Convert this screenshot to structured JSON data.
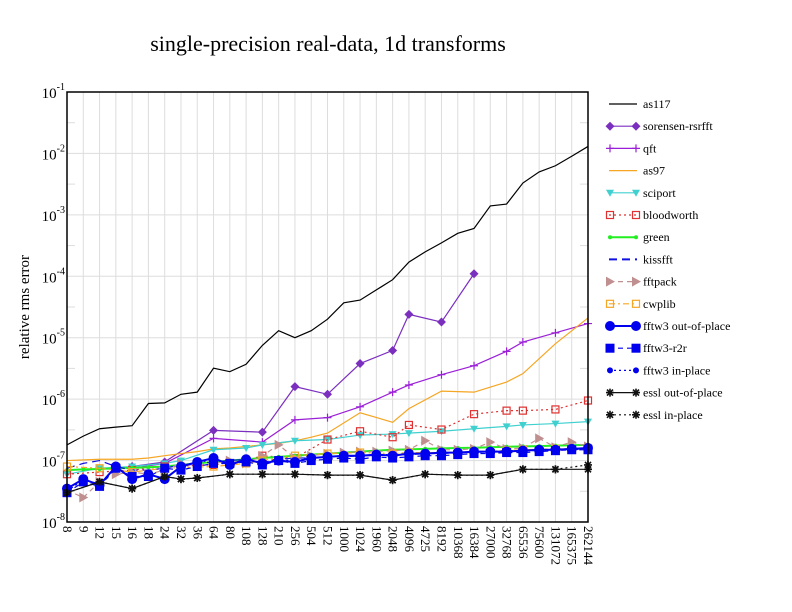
{
  "chart_data": {
    "type": "line",
    "title": "single-precision real-data, 1d transforms",
    "xlabel": "",
    "ylabel": "relative rms error",
    "yscale": "log",
    "ylim": [
      1e-08,
      0.1
    ],
    "yticks": [
      {
        "base": "10",
        "exp": "-8",
        "value": 1e-08
      },
      {
        "base": "10",
        "exp": "-7",
        "value": 1e-07
      },
      {
        "base": "10",
        "exp": "-6",
        "value": 1e-06
      },
      {
        "base": "10",
        "exp": "-5",
        "value": 1e-05
      },
      {
        "base": "10",
        "exp": "-4",
        "value": 0.0001
      },
      {
        "base": "10",
        "exp": "-3",
        "value": 0.001
      },
      {
        "base": "10",
        "exp": "-2",
        "value": 0.01
      },
      {
        "base": "10",
        "exp": "-1",
        "value": 0.1
      }
    ],
    "grid": true,
    "legend_position": "right",
    "categories": [
      "8",
      "9",
      "12",
      "15",
      "16",
      "18",
      "24",
      "32",
      "36",
      "64",
      "80",
      "108",
      "128",
      "210",
      "256",
      "504",
      "512",
      "1000",
      "1024",
      "1960",
      "2048",
      "4096",
      "4725",
      "8192",
      "10368",
      "16384",
      "27000",
      "32768",
      "65536",
      "75600",
      "131072",
      "165375",
      "262144"
    ],
    "series": [
      {
        "name": "as117",
        "color": "#000000",
        "dash": "",
        "marker": "none",
        "values": [
          1.8e-07,
          2.5e-07,
          3.3e-07,
          3.5e-07,
          3.7e-07,
          8.5e-07,
          8.7e-07,
          1.2e-06,
          1.3e-06,
          3.2e-06,
          2.8e-06,
          3.7e-06,
          7.5e-06,
          1.3e-05,
          1e-05,
          1.3e-05,
          2e-05,
          3.7e-05,
          4.1e-05,
          6e-05,
          8.8e-05,
          0.00017,
          0.00025,
          0.00035,
          0.0005,
          0.0006,
          0.0014,
          0.0015,
          0.0033,
          0.005,
          0.0063,
          0.009,
          0.013
        ]
      },
      {
        "name": "sorensen-rsrfft",
        "color": "#7b2fbf",
        "dash": "",
        "marker": "diamond",
        "values": [
          null,
          null,
          null,
          null,
          8e-08,
          null,
          9.5e-08,
          null,
          null,
          3.1e-07,
          null,
          null,
          2.9e-07,
          null,
          1.6e-06,
          null,
          1.2e-06,
          null,
          3.8e-06,
          null,
          6.2e-06,
          2.4e-05,
          null,
          1.8e-05,
          null,
          0.00011,
          null,
          null,
          null,
          null,
          null,
          null,
          null
        ]
      },
      {
        "name": "qft",
        "color": "#9b1fd8",
        "dash": "",
        "marker": "plus",
        "values": [
          null,
          null,
          null,
          null,
          7.5e-08,
          null,
          9e-08,
          null,
          null,
          2.3e-07,
          null,
          null,
          2e-07,
          null,
          4.6e-07,
          null,
          5e-07,
          null,
          7.5e-07,
          null,
          1.3e-06,
          1.7e-06,
          null,
          2.5e-06,
          null,
          3.5e-06,
          null,
          6e-06,
          8.5e-06,
          null,
          1.2e-05,
          null,
          1.7e-05
        ]
      },
      {
        "name": "as97",
        "color": "#f5a623",
        "dash": "",
        "marker": "none",
        "values": [
          1e-07,
          null,
          1.05e-07,
          null,
          1.05e-07,
          1.1e-07,
          1.2e-07,
          1.3e-07,
          1.4e-07,
          1.55e-07,
          1.6e-07,
          1.7e-07,
          1.8e-07,
          1.9e-07,
          2.1e-07,
          2.4e-07,
          2.8e-07,
          null,
          6e-07,
          null,
          4.2e-07,
          7e-07,
          null,
          1.35e-06,
          null,
          1.3e-06,
          null,
          1.9e-06,
          2.6e-06,
          null,
          8e-06,
          null,
          2.1e-05
        ]
      },
      {
        "name": "sciport",
        "color": "#40d0d0",
        "dash": "",
        "marker": "triangle-down",
        "values": [
          6e-08,
          null,
          7.5e-08,
          null,
          8e-08,
          null,
          9e-08,
          1e-07,
          null,
          1.5e-07,
          null,
          1.6e-07,
          1.8e-07,
          null,
          2.1e-07,
          null,
          2.2e-07,
          null,
          2.6e-07,
          null,
          2.7e-07,
          2.8e-07,
          null,
          3e-07,
          null,
          3.3e-07,
          null,
          3.6e-07,
          3.8e-07,
          null,
          4e-07,
          null,
          4.3e-07
        ]
      },
      {
        "name": "bloodworth",
        "color": "#e03030",
        "dash": "2,3",
        "marker": "square-open",
        "values": [
          6e-08,
          null,
          6.5e-08,
          null,
          7e-08,
          null,
          8e-08,
          null,
          null,
          8.5e-08,
          null,
          1e-07,
          1.2e-07,
          null,
          1.1e-07,
          null,
          2.2e-07,
          null,
          3e-07,
          null,
          2.4e-07,
          3.8e-07,
          null,
          3.2e-07,
          null,
          5.7e-07,
          null,
          6.5e-07,
          6.5e-07,
          null,
          6.8e-07,
          null,
          9.5e-07
        ]
      },
      {
        "name": "green",
        "color": "#22ee22",
        "dash": "",
        "marker": "dot-small",
        "values": [
          7e-08,
          7.2e-08,
          7.3e-08,
          7.5e-08,
          7.6e-08,
          7.8e-08,
          8e-08,
          8.5e-08,
          9e-08,
          9.5e-08,
          1e-07,
          1.05e-07,
          1.1e-07,
          1.15e-07,
          1.2e-07,
          1.25e-07,
          1.3e-07,
          1.35e-07,
          1.4e-07,
          1.45e-07,
          1.5e-07,
          1.52e-07,
          1.55e-07,
          1.58e-07,
          1.6e-07,
          1.62e-07,
          1.65e-07,
          1.68e-07,
          1.7e-07,
          1.72e-07,
          1.75e-07,
          1.78e-07,
          1.8e-07
        ]
      },
      {
        "name": "kissfft",
        "color": "#1010e0",
        "dash": "8,5",
        "marker": "none",
        "values": [
          7.5e-08,
          9e-08,
          1e-07,
          8e-08,
          7e-08,
          7e-08,
          7.5e-08,
          8.5e-08,
          9e-08,
          9.5e-08,
          1e-07,
          1.05e-07,
          1e-07,
          1.05e-07,
          1.1e-07,
          1.1e-07,
          1.15e-07,
          1.15e-07,
          1.2e-07,
          1.2e-07,
          1.25e-07,
          1.25e-07,
          1.3e-07,
          1.3e-07,
          1.35e-07,
          1.35e-07,
          1.4e-07,
          1.4e-07,
          1.45e-07,
          1.45e-07,
          1.5e-07,
          1.5e-07,
          1.55e-07
        ]
      },
      {
        "name": "fftpack",
        "color": "#c09090",
        "dash": "5,4",
        "marker": "triangle-right",
        "values": [
          3.3e-08,
          2.5e-08,
          4.5e-08,
          6e-08,
          6.5e-08,
          6e-08,
          7e-08,
          9e-08,
          8.5e-08,
          9e-08,
          1e-07,
          9e-08,
          1.2e-07,
          1.8e-07,
          1.1e-07,
          1.2e-07,
          1.3e-07,
          1.35e-07,
          1.4e-07,
          1.4e-07,
          1.45e-07,
          1.5e-07,
          2.1e-07,
          1.5e-07,
          1.5e-07,
          1.55e-07,
          2e-07,
          1.55e-07,
          1.6e-07,
          2.3e-07,
          1.65e-07,
          2e-07,
          1.7e-07
        ]
      },
      {
        "name": "cwplib",
        "color": "#f5a623",
        "dash": "6,3,2,3",
        "marker": "square-open",
        "values": [
          8e-08,
          null,
          7.5e-08,
          null,
          6.5e-08,
          null,
          7.5e-08,
          null,
          null,
          8e-08,
          null,
          9e-08,
          1e-07,
          null,
          1.2e-07,
          null,
          1.3e-07,
          null,
          1.35e-07,
          null,
          1.3e-07,
          1.35e-07,
          null,
          1.35e-07,
          null,
          1.4e-07,
          null,
          1.45e-07,
          1.5e-07,
          null,
          1.55e-07,
          null,
          1.6e-07
        ]
      },
      {
        "name": "fftw3 out-of-place",
        "color": "#0000ee",
        "dash": "",
        "marker": "circle",
        "values": [
          3.5e-08,
          5e-08,
          4e-08,
          8e-08,
          5e-08,
          6e-08,
          5e-08,
          8e-08,
          9.5e-08,
          1.1e-07,
          8.5e-08,
          1.05e-07,
          9e-08,
          1e-07,
          9.5e-08,
          1.1e-07,
          1.15e-07,
          1.2e-07,
          1.2e-07,
          1.25e-07,
          1.2e-07,
          1.3e-07,
          1.3e-07,
          1.35e-07,
          1.35e-07,
          1.4e-07,
          1.4e-07,
          1.4e-07,
          1.45e-07,
          1.5e-07,
          1.5e-07,
          1.55e-07,
          1.6e-07
        ]
      },
      {
        "name": "fftw3-r2r",
        "color": "#0000ee",
        "dash": "5,4",
        "marker": "square",
        "values": [
          3e-08,
          4.5e-08,
          3.8e-08,
          7.5e-08,
          5.5e-08,
          5.5e-08,
          7.5e-08,
          7e-08,
          8e-08,
          9e-08,
          9e-08,
          9.5e-08,
          8.5e-08,
          1e-07,
          9e-08,
          1e-07,
          1.05e-07,
          1.1e-07,
          1.05e-07,
          1.15e-07,
          1.1e-07,
          1.15e-07,
          1.2e-07,
          1.2e-07,
          1.25e-07,
          1.3e-07,
          1.3e-07,
          1.35e-07,
          1.35e-07,
          1.4e-07,
          1.45e-07,
          1.5e-07,
          1.5e-07
        ]
      },
      {
        "name": "fftw3 in-place",
        "color": "#0000ee",
        "dash": "2,3",
        "marker": "dot",
        "values": [
          3.2e-08,
          4.8e-08,
          4.2e-08,
          7.8e-08,
          5.2e-08,
          5.8e-08,
          5.2e-08,
          7.8e-08,
          9.2e-08,
          1.05e-07,
          8.8e-08,
          1.05e-07,
          9.2e-08,
          1.05e-07,
          9.8e-08,
          1.1e-07,
          1.15e-07,
          1.2e-07,
          1.2e-07,
          1.25e-07,
          1.25e-07,
          1.3e-07,
          1.3e-07,
          1.35e-07,
          1.35e-07,
          1.4e-07,
          1.4e-07,
          1.45e-07,
          1.45e-07,
          1.5e-07,
          1.5e-07,
          1.55e-07,
          1.6e-07
        ]
      },
      {
        "name": "essl out-of-place",
        "color": "#111111",
        "dash": "",
        "marker": "star",
        "values": [
          3e-08,
          null,
          4.5e-08,
          null,
          3.5e-08,
          null,
          5.5e-08,
          5e-08,
          5.2e-08,
          null,
          6e-08,
          null,
          6e-08,
          null,
          6e-08,
          null,
          5.8e-08,
          null,
          5.8e-08,
          null,
          4.8e-08,
          null,
          6e-08,
          null,
          5.8e-08,
          null,
          5.8e-08,
          null,
          7.2e-08,
          null,
          7.2e-08,
          null,
          7.2e-08
        ]
      },
      {
        "name": "essl in-place",
        "color": "#111111",
        "dash": "2,3",
        "marker": "star",
        "values": [
          3e-08,
          null,
          4.5e-08,
          null,
          3.5e-08,
          null,
          5.5e-08,
          5e-08,
          5.2e-08,
          null,
          6e-08,
          null,
          6e-08,
          null,
          6e-08,
          null,
          5.8e-08,
          null,
          5.8e-08,
          null,
          4.8e-08,
          null,
          6e-08,
          null,
          5.8e-08,
          null,
          5.8e-08,
          null,
          7.2e-08,
          null,
          7.2e-08,
          null,
          8.5e-08
        ]
      }
    ]
  }
}
